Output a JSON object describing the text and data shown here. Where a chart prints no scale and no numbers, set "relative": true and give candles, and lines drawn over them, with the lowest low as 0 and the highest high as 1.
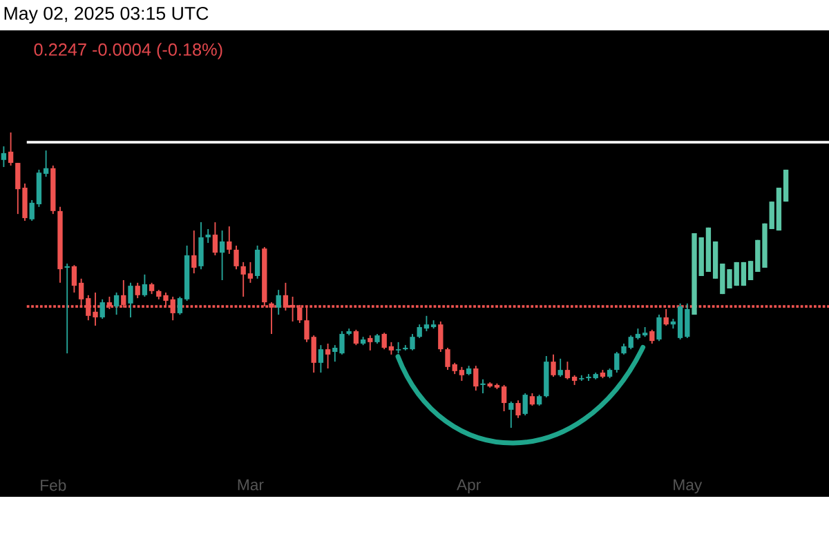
{
  "chart_data": {
    "type": "candlestick",
    "relative": true,
    "annotations": [
      "May 02, 2025 03:15 UTC",
      "0.2247  -0.0004 (-0.18%)"
    ],
    "categories": [
      null,
      null,
      null,
      null,
      null,
      null,
      null,
      "Feb",
      null,
      null,
      null,
      null,
      null,
      null,
      null,
      null,
      null,
      null,
      null,
      null,
      null,
      null,
      null,
      null,
      null,
      null,
      null,
      null,
      null,
      null,
      null,
      null,
      null,
      null,
      null,
      "Mar",
      null,
      null,
      null,
      null,
      null,
      null,
      null,
      null,
      null,
      null,
      null,
      null,
      null,
      null,
      null,
      null,
      null,
      null,
      null,
      null,
      null,
      null,
      null,
      null,
      null,
      null,
      null,
      null,
      null,
      null,
      "Apr",
      null,
      null,
      null,
      null,
      null,
      null,
      null,
      null,
      null,
      null,
      null,
      null,
      null,
      null,
      null,
      null,
      null,
      null,
      null,
      null,
      null,
      null,
      null,
      null,
      null,
      null,
      null,
      null,
      null,
      null,
      "May",
      null,
      null,
      null,
      null,
      null,
      null,
      null,
      null,
      null,
      null,
      null,
      null,
      null,
      null
    ],
    "ohlc": [
      [
        0.907,
        0.953,
        0.883,
        0.93
      ],
      [
        0.935,
        1,
        0.888,
        0.897
      ],
      [
        0.897,
        0.897,
        0.724,
        0.808
      ],
      [
        0.813,
        0.827,
        0.701,
        0.71
      ],
      [
        0.706,
        0.771,
        0.701,
        0.762
      ],
      [
        0.757,
        0.874,
        0.748,
        0.864
      ],
      [
        0.86,
        0.939,
        0.85,
        0.879
      ],
      [
        0.879,
        0.888,
        0.724,
        0.734
      ],
      [
        0.734,
        0.748,
        0.491,
        0.537
      ],
      [
        0.542,
        0.556,
        0.252,
        0.547
      ],
      [
        0.547,
        0.551,
        0.458,
        0.481
      ],
      [
        0.491,
        0.505,
        0.411,
        0.435
      ],
      [
        0.439,
        0.449,
        0.364,
        0.379
      ],
      [
        0.393,
        0.458,
        0.346,
        0.374
      ],
      [
        0.374,
        0.435,
        0.369,
        0.425
      ],
      [
        0.425,
        0.444,
        0.402,
        0.411
      ],
      [
        0.411,
        0.458,
        0.383,
        0.449
      ],
      [
        0.449,
        0.5,
        0.407,
        0.416
      ],
      [
        0.421,
        0.491,
        0.374,
        0.481
      ],
      [
        0.481,
        0.491,
        0.439,
        0.449
      ],
      [
        0.449,
        0.519,
        0.444,
        0.486
      ],
      [
        0.486,
        0.491,
        0.453,
        0.463
      ],
      [
        0.463,
        0.467,
        0.435,
        0.444
      ],
      [
        0.449,
        0.458,
        0.411,
        0.43
      ],
      [
        0.435,
        0.444,
        0.364,
        0.388
      ],
      [
        0.388,
        0.444,
        0.383,
        0.439
      ],
      [
        0.435,
        0.617,
        0.43,
        0.584
      ],
      [
        0.584,
        0.668,
        0.523,
        0.542
      ],
      [
        0.547,
        0.696,
        0.537,
        0.645
      ],
      [
        0.645,
        0.673,
        0.626,
        0.654
      ],
      [
        0.654,
        0.696,
        0.584,
        0.593
      ],
      [
        0.593,
        0.668,
        0.5,
        0.631
      ],
      [
        0.631,
        0.682,
        0.589,
        0.603
      ],
      [
        0.603,
        0.617,
        0.537,
        0.547
      ],
      [
        0.547,
        0.561,
        0.444,
        0.519
      ],
      [
        0.523,
        0.561,
        0.491,
        0.505
      ],
      [
        0.514,
        0.617,
        0.505,
        0.603
      ],
      [
        0.607,
        0.612,
        0.411,
        0.425
      ],
      [
        0.421,
        0.425,
        0.318,
        0.407
      ],
      [
        0.407,
        0.467,
        0.383,
        0.449
      ],
      [
        0.449,
        0.491,
        0.397,
        0.407
      ],
      [
        0.416,
        0.444,
        0.36,
        0.407
      ],
      [
        0.407,
        0.416,
        0.355,
        0.364
      ],
      [
        0.364,
        0.411,
        0.29,
        0.299
      ],
      [
        0.308,
        0.313,
        0.187,
        0.22
      ],
      [
        0.22,
        0.28,
        0.187,
        0.266
      ],
      [
        0.266,
        0.285,
        0.201,
        0.248
      ],
      [
        0.257,
        0.28,
        0.224,
        0.271
      ],
      [
        0.252,
        0.327,
        0.248,
        0.318
      ],
      [
        0.318,
        0.336,
        0.313,
        0.327
      ],
      [
        0.327,
        0.332,
        0.28,
        0.285
      ],
      [
        0.285,
        0.308,
        0.28,
        0.299
      ],
      [
        0.304,
        0.313,
        0.262,
        0.29
      ],
      [
        0.29,
        0.318,
        0.285,
        0.313
      ],
      [
        0.318,
        0.322,
        0.266,
        0.271
      ],
      [
        0.276,
        0.29,
        0.248,
        0.262
      ],
      [
        0.262,
        0.29,
        0.252,
        0.266
      ],
      [
        0.266,
        0.28,
        0.262,
        0.271
      ],
      [
        0.266,
        0.318,
        0.262,
        0.308
      ],
      [
        0.308,
        0.35,
        0.304,
        0.341
      ],
      [
        0.336,
        0.379,
        0.327,
        0.35
      ],
      [
        0.341,
        0.364,
        0.336,
        0.35
      ],
      [
        0.35,
        0.36,
        0.257,
        0.266
      ],
      [
        0.266,
        0.271,
        0.196,
        0.206
      ],
      [
        0.215,
        0.22,
        0.182,
        0.192
      ],
      [
        0.196,
        0.206,
        0.159,
        0.178
      ],
      [
        0.182,
        0.21,
        0.178,
        0.201
      ],
      [
        0.201,
        0.21,
        0.126,
        0.14
      ],
      [
        0.145,
        0.164,
        0.117,
        0.15
      ],
      [
        0.15,
        0.154,
        0.136,
        0.14
      ],
      [
        0.145,
        0.15,
        0.131,
        0.136
      ],
      [
        0.14,
        0.145,
        0.056,
        0.084
      ],
      [
        0.061,
        0.089,
        0,
        0.084
      ],
      [
        0.084,
        0.093,
        0.033,
        0.042
      ],
      [
        0.047,
        0.117,
        0.042,
        0.112
      ],
      [
        0.107,
        0.117,
        0.075,
        0.079
      ],
      [
        0.079,
        0.112,
        0.075,
        0.107
      ],
      [
        0.107,
        0.243,
        0.103,
        0.224
      ],
      [
        0.224,
        0.248,
        0.173,
        0.178
      ],
      [
        0.178,
        0.234,
        0.173,
        0.196
      ],
      [
        0.196,
        0.224,
        0.164,
        0.168
      ],
      [
        0.173,
        0.178,
        0.145,
        0.159
      ],
      [
        0.164,
        0.178,
        0.159,
        0.168
      ],
      [
        0.168,
        0.182,
        0.159,
        0.173
      ],
      [
        0.168,
        0.187,
        0.164,
        0.182
      ],
      [
        0.187,
        0.196,
        0.168,
        0.173
      ],
      [
        0.173,
        0.201,
        0.168,
        0.196
      ],
      [
        0.196,
        0.257,
        0.187,
        0.252
      ],
      [
        0.252,
        0.285,
        0.248,
        0.276
      ],
      [
        0.271,
        0.313,
        0.266,
        0.308
      ],
      [
        0.304,
        0.336,
        0.299,
        0.318
      ],
      [
        0.313,
        0.341,
        0.308,
        0.322
      ],
      [
        0.327,
        0.332,
        0.285,
        0.294
      ],
      [
        0.299,
        0.383,
        0.294,
        0.374
      ],
      [
        0.374,
        0.402,
        0.346,
        0.35
      ],
      [
        0.35,
        0.369,
        0.336,
        0.36
      ],
      [
        0.304,
        0.421,
        0.299,
        0.411
      ],
      [
        0.308,
        0.421,
        0.304,
        0.402
      ],
      [
        0.383,
        0.659,
        0.383,
        0.659
      ],
      [
        0.514,
        0.645,
        0.514,
        0.645
      ],
      [
        0.528,
        0.678,
        0.528,
        0.678
      ],
      [
        0.505,
        0.631,
        0.505,
        0.631
      ],
      [
        0.453,
        0.556,
        0.453,
        0.556
      ],
      [
        0.472,
        0.537,
        0.472,
        0.537
      ],
      [
        0.481,
        0.561,
        0.481,
        0.561
      ],
      [
        0.481,
        0.561,
        0.481,
        0.561
      ],
      [
        0.5,
        0.565,
        0.5,
        0.565
      ],
      [
        0.528,
        0.636,
        0.528,
        0.636
      ],
      [
        0.542,
        0.692,
        0.542,
        0.692
      ],
      [
        0.673,
        0.766,
        0.673,
        0.766
      ],
      [
        0.668,
        0.813,
        0.668,
        0.813
      ],
      [
        0.766,
        0.874,
        0.766,
        0.874
      ]
    ],
    "colors": [
      "#26a69a",
      "#ef5350",
      "#ef5350",
      "#ef5350",
      "#26a69a",
      "#26a69a",
      "#26a69a",
      "#ef5350",
      "#ef5350",
      "#26a69a",
      "#ef5350",
      "#ef5350",
      "#ef5350",
      "#ef5350",
      "#26a69a",
      "#ef5350",
      "#26a69a",
      "#ef5350",
      "#26a69a",
      "#ef5350",
      "#26a69a",
      "#ef5350",
      "#ef5350",
      "#ef5350",
      "#ef5350",
      "#26a69a",
      "#26a69a",
      "#ef5350",
      "#26a69a",
      "#26a69a",
      "#ef5350",
      "#26a69a",
      "#ef5350",
      "#ef5350",
      "#ef5350",
      "#ef5350",
      "#26a69a",
      "#ef5350",
      "#ef5350",
      "#26a69a",
      "#ef5350",
      "#ef5350",
      "#ef5350",
      "#ef5350",
      "#ef5350",
      "#26a69a",
      "#ef5350",
      "#26a69a",
      "#26a69a",
      "#26a69a",
      "#ef5350",
      "#26a69a",
      "#ef5350",
      "#26a69a",
      "#ef5350",
      "#ef5350",
      "#26a69a",
      "#26a69a",
      "#26a69a",
      "#26a69a",
      "#26a69a",
      "#26a69a",
      "#ef5350",
      "#ef5350",
      "#ef5350",
      "#ef5350",
      "#26a69a",
      "#ef5350",
      "#26a69a",
      "#ef5350",
      "#ef5350",
      "#ef5350",
      "#26a69a",
      "#ef5350",
      "#26a69a",
      "#ef5350",
      "#26a69a",
      "#26a69a",
      "#ef5350",
      "#26a69a",
      "#ef5350",
      "#ef5350",
      "#26a69a",
      "#26a69a",
      "#26a69a",
      "#ef5350",
      "#26a69a",
      "#26a69a",
      "#26a69a",
      "#26a69a",
      "#26a69a",
      "#26a69a",
      "#ef5350",
      "#26a69a",
      "#ef5350",
      "#26a69a",
      "#26a69a",
      "#26a69a",
      "#5cc6a6",
      "#5cc6a6",
      "#5cc6a6",
      "#5cc6a6",
      "#5cc6a6",
      "#5cc6a6",
      "#5cc6a6",
      "#5cc6a6",
      "#5cc6a6",
      "#5cc6a6",
      "#5cc6a6",
      "#5cc6a6",
      "#5cc6a6",
      "#5cc6a6"
    ],
    "ref_lines": [
      {
        "axis": "y",
        "value": 0.967,
        "color": "#ffffff",
        "line_style": "solid"
      },
      {
        "axis": "y",
        "value": 0.411,
        "color": "#ef5350",
        "line_style": "dotted"
      }
    ]
  }
}
